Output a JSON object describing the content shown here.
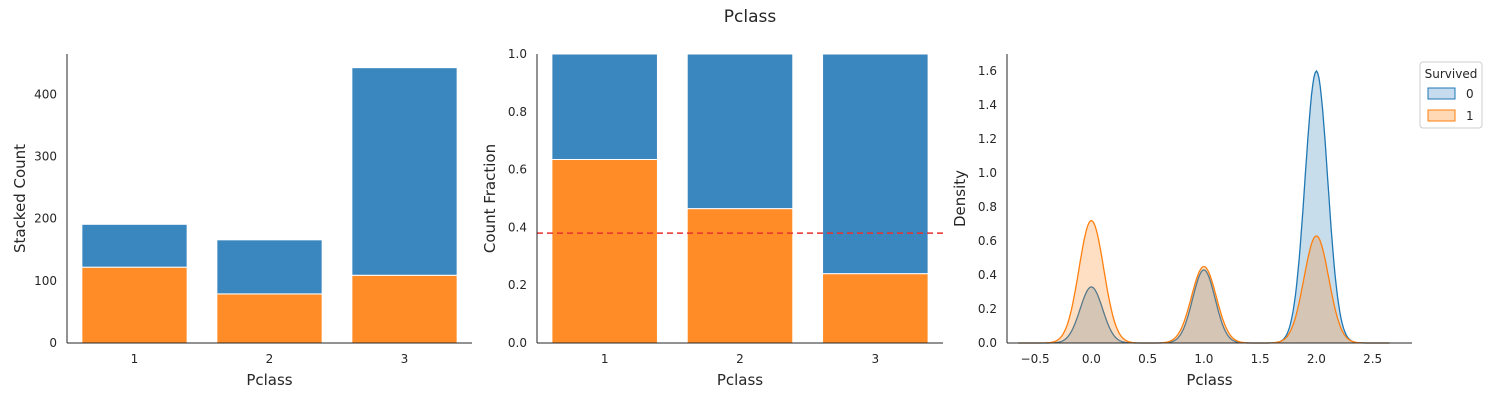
{
  "figure": {
    "title": "Pclass"
  },
  "legend": {
    "title": "Survived",
    "placement": "top-right",
    "entries": [
      "0",
      "1"
    ]
  },
  "colors": {
    "survived_0": "#3a86be",
    "survived_1": "#ff8c26",
    "kde_0_line": "#1f77b4",
    "kde_1_line": "#ff7f0e",
    "refline": "#e8322c"
  },
  "chart_data": [
    {
      "type": "bar",
      "stacked": true,
      "title": "",
      "xlabel": "Pclass",
      "ylabel": "Stacked Count",
      "categories": [
        "1",
        "2",
        "3"
      ],
      "series": [
        {
          "name": "1",
          "values": [
            122,
            79,
            109
          ]
        },
        {
          "name": "0",
          "values": [
            69,
            87,
            334
          ]
        }
      ],
      "ylim": [
        0,
        465
      ],
      "yticks": [
        0,
        100,
        200,
        300,
        400
      ],
      "grid": false
    },
    {
      "type": "bar",
      "stacked": true,
      "normalized": true,
      "title": "",
      "xlabel": "Pclass",
      "ylabel": "Count Fraction",
      "categories": [
        "1",
        "2",
        "3"
      ],
      "series": [
        {
          "name": "1",
          "values": [
            0.635,
            0.465,
            0.24
          ]
        },
        {
          "name": "0",
          "values": [
            0.365,
            0.535,
            0.76
          ]
        }
      ],
      "hline": 0.38,
      "ylim": [
        0,
        1.0
      ],
      "yticks": [
        0.0,
        0.2,
        0.4,
        0.6,
        0.8,
        1.0
      ],
      "grid": false
    },
    {
      "type": "area",
      "title": "",
      "xlabel": "Pclass",
      "ylabel": "Density",
      "series": [
        {
          "name": "0",
          "peaks": [
            {
              "x": 0.0,
              "height": 0.33,
              "width": 0.1
            },
            {
              "x": 1.0,
              "height": 0.43,
              "width": 0.1
            },
            {
              "x": 2.0,
              "height": 1.6,
              "width": 0.1
            }
          ]
        },
        {
          "name": "1",
          "peaks": [
            {
              "x": 0.0,
              "height": 0.72,
              "width": 0.11
            },
            {
              "x": 1.0,
              "height": 0.45,
              "width": 0.11
            },
            {
              "x": 2.0,
              "height": 0.63,
              "width": 0.11
            }
          ]
        }
      ],
      "xlim": [
        -0.75,
        2.85
      ],
      "ylim": [
        0,
        1.7
      ],
      "xticks": [
        -0.5,
        0.0,
        0.5,
        1.0,
        1.5,
        2.0,
        2.5
      ],
      "yticks": [
        0.0,
        0.2,
        0.4,
        0.6,
        0.8,
        1.0,
        1.2,
        1.4,
        1.6
      ],
      "grid": false
    }
  ]
}
